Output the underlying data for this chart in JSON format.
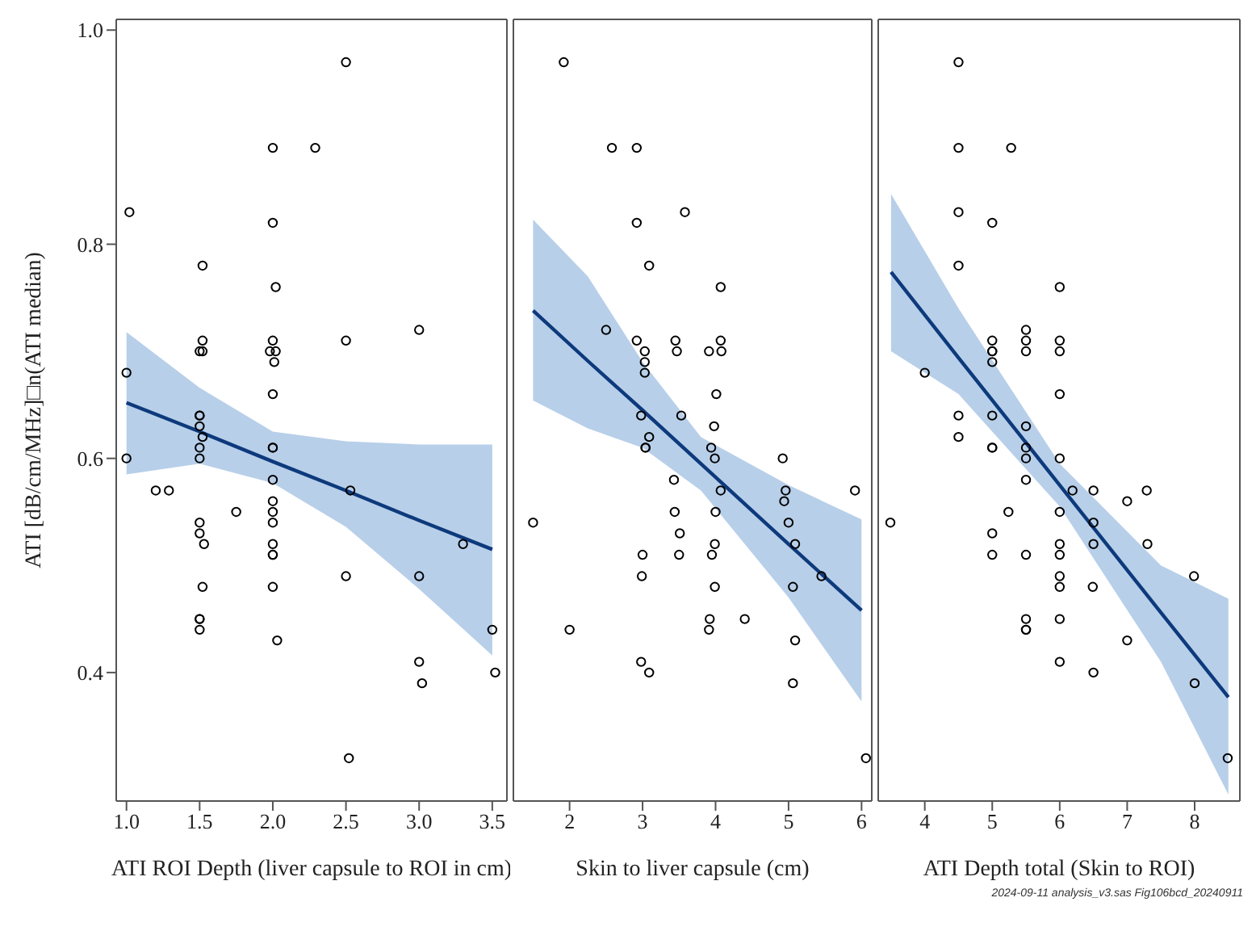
{
  "chart_data": [
    {
      "type": "scatter",
      "xlabel": "ATI ROI Depth (liver capsule to ROI in cm)",
      "ylabel": "ATI [dB/cm/MHz]□n(ATI median)",
      "xlim": [
        0.93,
        3.6
      ],
      "xticks": [
        {
          "value": 1,
          "label": "1.0"
        },
        1.5,
        {
          "value": 2,
          "label": "2.0"
        },
        2.5,
        {
          "value": 3,
          "label": "3.0"
        },
        3.5
      ],
      "ylim": [
        0.28,
        1.01
      ],
      "yticks": [
        {
          "value": 0.4,
          "label": "0.4"
        },
        {
          "value": 0.6,
          "label": "0.6"
        },
        {
          "value": 0.8,
          "label": "0.8"
        },
        {
          "value": 1,
          "label": "1.0"
        }
      ],
      "series": [
        {
          "type": "line",
          "color": "#0d3a7c",
          "x": [
            1.0,
            1.5,
            2.0,
            2.5,
            3.0,
            3.5
          ],
          "values": [
            0.652,
            0.625,
            0.597,
            0.57,
            0.542,
            0.515
          ],
          "lower": [
            0.585,
            0.595,
            0.577,
            0.536,
            0.478,
            0.416
          ],
          "upper": [
            0.718,
            0.666,
            0.625,
            0.616,
            0.613,
            0.613
          ]
        },
        {
          "marker": "circle",
          "color": "#000000",
          "x": [
            2.5,
            2.0,
            2.29,
            1.02,
            2.0,
            1.52,
            2.02,
            3.0,
            2.5,
            1.52,
            2.0,
            1.5,
            1.52,
            1.98,
            2.02,
            2.01,
            1.0,
            2.0,
            1.5,
            1.5,
            1.5,
            1.52,
            1.0,
            1.5,
            1.5,
            2.0,
            2.0,
            2.0,
            1.2,
            1.29,
            2.53,
            1.75,
            2.0,
            2.0,
            2.0,
            1.5,
            1.5,
            1.53,
            2.0,
            3.3,
            2.0,
            2.0,
            2.5,
            3.0,
            1.52,
            2.0,
            1.5,
            1.5,
            1.5,
            2.03,
            3.5,
            3.0,
            3.02,
            3.52,
            2.52
          ],
          "values": [
            0.97,
            0.89,
            0.89,
            0.83,
            0.82,
            0.78,
            0.76,
            0.72,
            0.71,
            0.71,
            0.71,
            0.7,
            0.7,
            0.7,
            0.7,
            0.69,
            0.68,
            0.66,
            0.64,
            0.64,
            0.63,
            0.62,
            0.6,
            0.61,
            0.6,
            0.61,
            0.61,
            0.58,
            0.57,
            0.57,
            0.57,
            0.55,
            0.56,
            0.55,
            0.54,
            0.54,
            0.53,
            0.52,
            0.52,
            0.52,
            0.51,
            0.51,
            0.49,
            0.49,
            0.48,
            0.48,
            0.45,
            0.45,
            0.44,
            0.43,
            0.44,
            0.41,
            0.39,
            0.4,
            0.32
          ]
        }
      ]
    },
    {
      "type": "scatter",
      "xlabel": "Skin to liver capsule (cm)",
      "xlim": [
        1.23,
        6.14
      ],
      "xticks": [
        2,
        3,
        4,
        5,
        6
      ],
      "ylim": [
        0.28,
        1.01
      ],
      "tick_labels": "x",
      "series": [
        {
          "type": "line",
          "color": "#0d3a7c",
          "x": [
            1.5,
            2.25,
            3.0,
            3.8,
            5.0,
            6.0
          ],
          "values": [
            0.738,
            0.691,
            0.645,
            0.595,
            0.52,
            0.458
          ],
          "lower": [
            0.654,
            0.628,
            0.61,
            0.57,
            0.47,
            0.373
          ],
          "upper": [
            0.823,
            0.77,
            0.69,
            0.62,
            0.575,
            0.543
          ]
        },
        {
          "marker": "circle",
          "color": "#000000",
          "x": [
            1.92,
            2.58,
            2.92,
            3.58,
            2.92,
            3.09,
            4.07,
            2.5,
            2.92,
            3.45,
            4.07,
            3.03,
            3.47,
            3.91,
            4.08,
            3.03,
            3.03,
            4.01,
            2.98,
            3.53,
            3.98,
            3.09,
            3.04,
            3.04,
            3.94,
            3.99,
            4.92,
            1.5,
            3.43,
            4.07,
            4.96,
            5.91,
            3.44,
            4.0,
            4.94,
            5.0,
            3.51,
            3.99,
            5.09,
            3.0,
            3.5,
            3.95,
            5.45,
            2.99,
            3.99,
            5.06,
            2.0,
            3.92,
            3.91,
            4.4,
            5.09,
            2.98,
            3.09,
            5.06,
            6.06
          ],
          "values": [
            0.97,
            0.89,
            0.89,
            0.83,
            0.82,
            0.78,
            0.76,
            0.72,
            0.71,
            0.71,
            0.71,
            0.7,
            0.7,
            0.7,
            0.7,
            0.69,
            0.68,
            0.66,
            0.64,
            0.64,
            0.63,
            0.62,
            0.61,
            0.61,
            0.61,
            0.6,
            0.6,
            0.54,
            0.58,
            0.57,
            0.57,
            0.57,
            0.55,
            0.55,
            0.56,
            0.54,
            0.53,
            0.52,
            0.52,
            0.51,
            0.51,
            0.51,
            0.49,
            0.49,
            0.48,
            0.48,
            0.44,
            0.45,
            0.44,
            0.45,
            0.43,
            0.41,
            0.4,
            0.39,
            0.32
          ]
        }
      ]
    },
    {
      "type": "scatter",
      "xlabel": "ATI Depth total (Skin to ROI)",
      "xlim": [
        3.31,
        8.67
      ],
      "xticks": [
        4,
        5,
        6,
        7,
        8
      ],
      "ylim": [
        0.28,
        1.01
      ],
      "tick_labels": "x",
      "annotations": [
        "2024-09-11 analysis_v3.sas Fig106bcd_20240911"
      ],
      "series": [
        {
          "type": "line",
          "color": "#0d3a7c",
          "x": [
            3.5,
            4.5,
            6.0,
            7.5,
            8.5
          ],
          "values": [
            0.774,
            0.694,
            0.575,
            0.456,
            0.377
          ],
          "lower": [
            0.7,
            0.66,
            0.555,
            0.41,
            0.286
          ],
          "upper": [
            0.847,
            0.74,
            0.595,
            0.5,
            0.469
          ]
        },
        {
          "marker": "circle",
          "color": "#000000",
          "x": [
            4.5,
            4.5,
            5.28,
            4.5,
            5.0,
            4.5,
            6.0,
            5.5,
            5.0,
            5.5,
            6.0,
            5.0,
            5.0,
            5.5,
            6.0,
            5.0,
            4.0,
            6.0,
            4.5,
            5.0,
            5.5,
            4.5,
            5.0,
            5.0,
            5.5,
            5.5,
            6.0,
            3.49,
            5.5,
            6.19,
            6.5,
            7.29,
            7.0,
            5.24,
            6.0,
            6.5,
            5.0,
            6.0,
            6.5,
            7.3,
            5.0,
            5.5,
            6.0,
            6.0,
            7.99,
            6.0,
            6.49,
            5.5,
            5.5,
            5.5,
            6.0,
            7.0,
            6.0,
            6.5,
            8.0,
            8.49
          ],
          "values": [
            0.97,
            0.89,
            0.89,
            0.83,
            0.82,
            0.78,
            0.76,
            0.72,
            0.71,
            0.71,
            0.71,
            0.7,
            0.7,
            0.7,
            0.7,
            0.69,
            0.68,
            0.66,
            0.64,
            0.64,
            0.63,
            0.62,
            0.61,
            0.61,
            0.61,
            0.6,
            0.6,
            0.54,
            0.58,
            0.57,
            0.57,
            0.57,
            0.56,
            0.55,
            0.55,
            0.54,
            0.53,
            0.52,
            0.52,
            0.52,
            0.51,
            0.51,
            0.51,
            0.49,
            0.49,
            0.48,
            0.48,
            0.45,
            0.44,
            0.44,
            0.45,
            0.43,
            0.41,
            0.4,
            0.39,
            0.32
          ]
        }
      ]
    }
  ]
}
